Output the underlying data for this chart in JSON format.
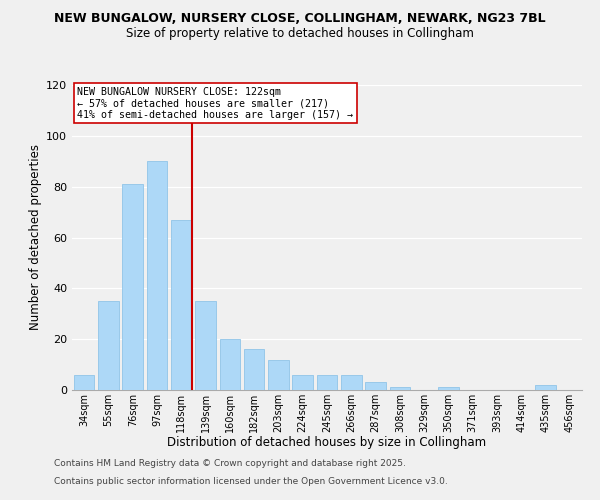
{
  "title": "NEW BUNGALOW, NURSERY CLOSE, COLLINGHAM, NEWARK, NG23 7BL",
  "subtitle": "Size of property relative to detached houses in Collingham",
  "xlabel": "Distribution of detached houses by size in Collingham",
  "ylabel": "Number of detached properties",
  "bar_color": "#add8f7",
  "bar_edge_color": "#90c4e8",
  "categories": [
    "34sqm",
    "55sqm",
    "76sqm",
    "97sqm",
    "118sqm",
    "139sqm",
    "160sqm",
    "182sqm",
    "203sqm",
    "224sqm",
    "245sqm",
    "266sqm",
    "287sqm",
    "308sqm",
    "329sqm",
    "350sqm",
    "371sqm",
    "393sqm",
    "414sqm",
    "435sqm",
    "456sqm"
  ],
  "values": [
    6,
    35,
    81,
    90,
    67,
    35,
    20,
    16,
    12,
    6,
    6,
    6,
    3,
    1,
    0,
    1,
    0,
    0,
    0,
    2,
    0
  ],
  "ylim": [
    0,
    120
  ],
  "yticks": [
    0,
    20,
    40,
    60,
    80,
    100,
    120
  ],
  "vline_idx": 4,
  "vline_color": "#cc0000",
  "annotation_title": "NEW BUNGALOW NURSERY CLOSE: 122sqm",
  "annotation_line1": "← 57% of detached houses are smaller (217)",
  "annotation_line2": "41% of semi-detached houses are larger (157) →",
  "annotation_box_color": "#ffffff",
  "annotation_box_edge": "#cc0000",
  "footer1": "Contains HM Land Registry data © Crown copyright and database right 2025.",
  "footer2": "Contains public sector information licensed under the Open Government Licence v3.0.",
  "background_color": "#f0f0f0",
  "title_fontsize": 9,
  "subtitle_fontsize": 8.5,
  "footer_fontsize": 6.5
}
